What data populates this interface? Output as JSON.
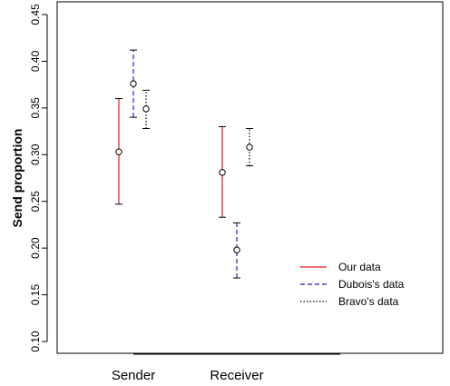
{
  "chart_data": {
    "type": "errorbar",
    "title": "",
    "xlabel": "",
    "ylabel": "Send proportion",
    "ylim": [
      0.1,
      0.45
    ],
    "yticks": [
      "0.10",
      "0.15",
      "0.20",
      "0.25",
      "0.30",
      "0.35",
      "0.40",
      "0.45"
    ],
    "categories": [
      "Sender",
      "Receiver"
    ],
    "grid": false,
    "legend_position": "bottom-right",
    "series": [
      {
        "name": "Our data",
        "color": "#e41a1c",
        "linestyle": "solid",
        "points": [
          {
            "category": "Sender",
            "mean": 0.303,
            "lower": 0.247,
            "upper": 0.36
          },
          {
            "category": "Receiver",
            "mean": 0.281,
            "lower": 0.233,
            "upper": 0.33
          }
        ]
      },
      {
        "name": "Dubois's data",
        "color": "#1f1fbf",
        "linestyle": "dashed",
        "points": [
          {
            "category": "Sender",
            "mean": 0.376,
            "lower": 0.34,
            "upper": 0.412
          },
          {
            "category": "Receiver",
            "mean": 0.198,
            "lower": 0.168,
            "upper": 0.227
          }
        ]
      },
      {
        "name": "Bravo's data",
        "color": "#000000",
        "linestyle": "dotted",
        "points": [
          {
            "category": "Sender",
            "mean": 0.349,
            "lower": 0.328,
            "upper": 0.369
          },
          {
            "category": "Receiver",
            "mean": 0.308,
            "lower": 0.288,
            "upper": 0.328
          }
        ]
      }
    ]
  }
}
